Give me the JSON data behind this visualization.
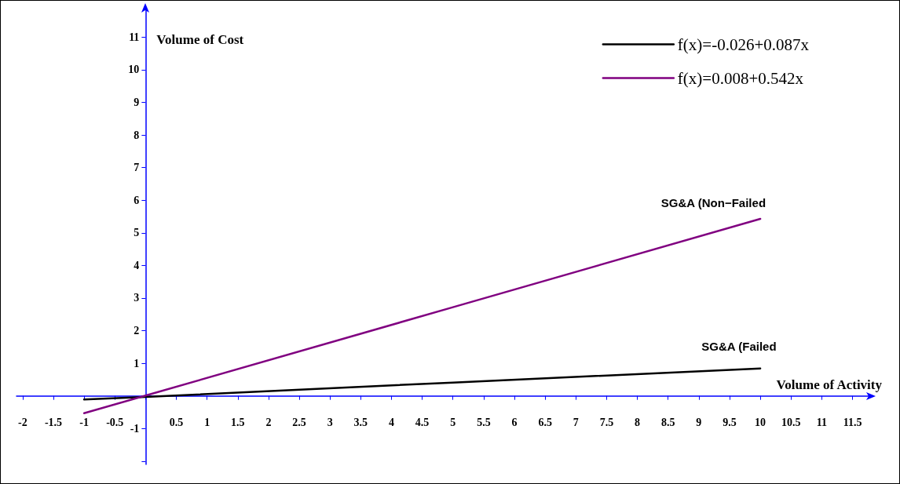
{
  "chart_data": {
    "type": "line",
    "xlabel": "Volume of Activity",
    "ylabel": "Volume of Cost",
    "xlim": [
      -2.1,
      11.8
    ],
    "ylim": [
      -2.1,
      11.9
    ],
    "xticks": [
      -2,
      -1.5,
      -1,
      -0.5,
      {
        "value": 0,
        "label": null
      },
      0.5,
      1,
      1.5,
      2,
      2.5,
      3,
      3.5,
      4,
      4.5,
      5,
      5.5,
      6,
      6.5,
      7,
      7.5,
      8,
      8.5,
      9,
      9.5,
      10,
      10.5,
      11,
      11.5
    ],
    "yticks": [
      {
        "value": -2,
        "label": null
      },
      -1,
      {
        "value": 0,
        "label": null
      },
      1,
      2,
      3,
      4,
      5,
      6,
      7,
      8,
      9,
      10,
      11
    ],
    "series": [
      {
        "name": "f(x)=-0.026+0.087x",
        "color": "#000000",
        "x": [
          -1,
          0,
          5,
          10
        ],
        "values": [
          -0.11,
          -0.03,
          0.41,
          0.84
        ]
      },
      {
        "name": "f(x)=0.008+0.542x",
        "color": "#800080",
        "x": [
          -1,
          0,
          5,
          10
        ],
        "values": [
          -0.53,
          0.01,
          2.72,
          5.43
        ]
      }
    ],
    "annotations": [
      "SG&A (Non−Failed",
      "SG&A (Failed"
    ],
    "legend": "top right",
    "marker": "none",
    "line_style": "solid",
    "grid": false
  }
}
